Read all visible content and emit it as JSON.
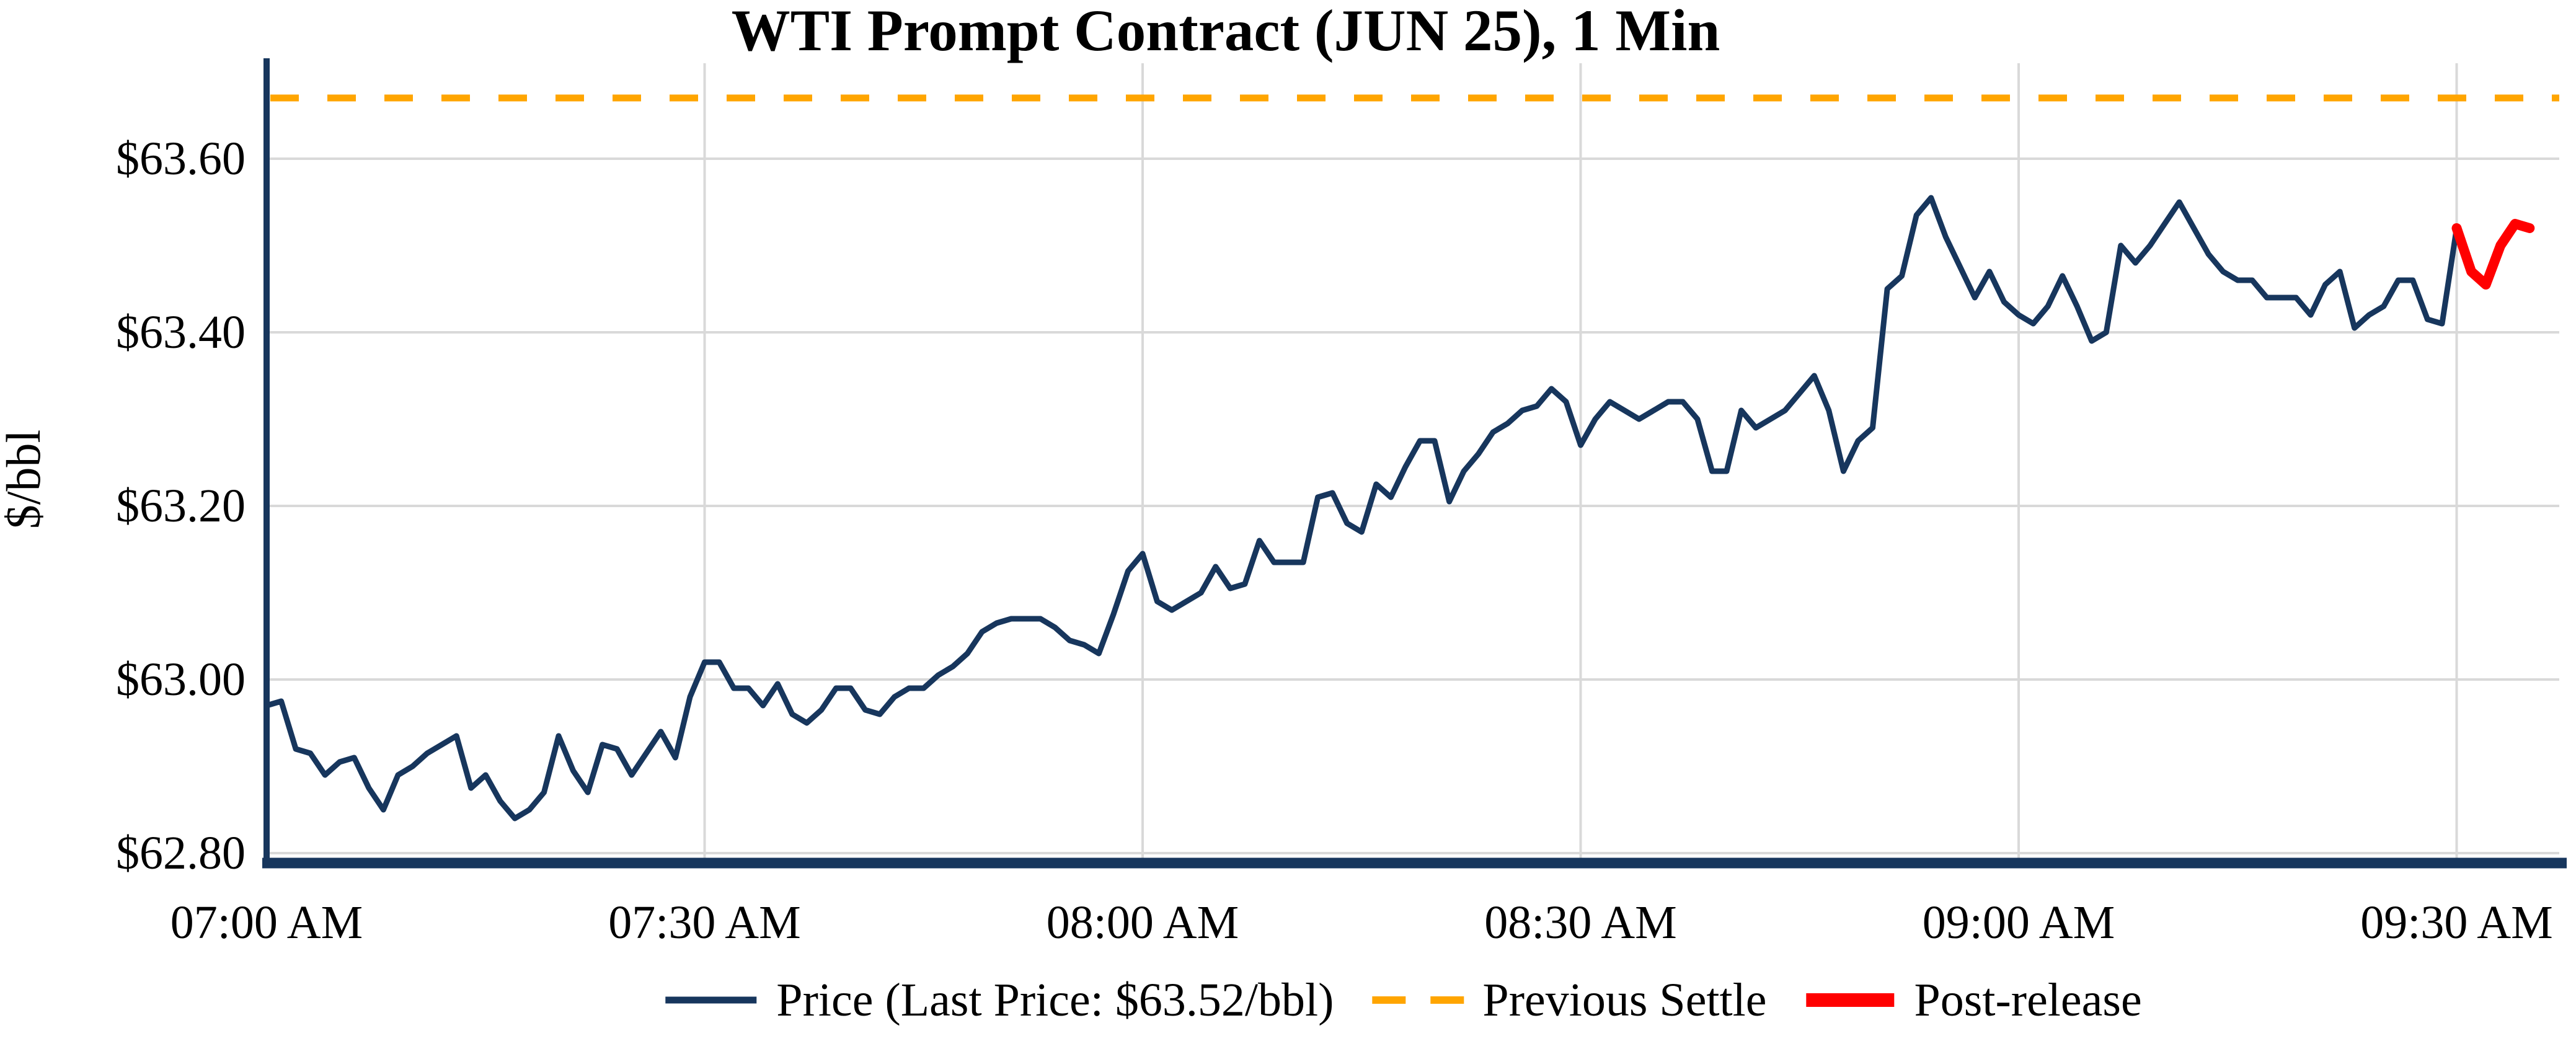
{
  "title": "WTI Prompt Contract (JUN 25), 1 Min",
  "colors": {
    "price_line": "#17365D",
    "previous_settle": "#FFA500",
    "post_release": "#FF0000",
    "gridline": "#D9D9D9",
    "background": "#FFFFFF",
    "text": "#000000"
  },
  "last_price": "$63.52/bbl",
  "chart_data": {
    "type": "line",
    "title": "WTI Prompt Contract (JUN 25), 1 Min",
    "xlabel": "",
    "ylabel": "$/bbl",
    "grid": true,
    "x_axis": {
      "unit": "minutes after 07:00 AM",
      "ticks": [
        {
          "minute": 0,
          "label": "07:00 AM"
        },
        {
          "minute": 30,
          "label": "07:30 AM"
        },
        {
          "minute": 60,
          "label": "08:00 AM"
        },
        {
          "minute": 90,
          "label": "08:30 AM"
        },
        {
          "minute": 120,
          "label": "09:00 AM"
        },
        {
          "minute": 150,
          "label": "09:30 AM"
        }
      ]
    },
    "y_axis": {
      "range": [
        62.79,
        63.71
      ],
      "ticks": [
        {
          "value": 62.8,
          "label": "$62.80"
        },
        {
          "value": 63.0,
          "label": "$63.00"
        },
        {
          "value": 63.2,
          "label": "$63.20"
        },
        {
          "value": 63.4,
          "label": "$63.40"
        },
        {
          "value": 63.6,
          "label": "$63.60"
        }
      ]
    },
    "previous_settle": {
      "label": "Previous Settle",
      "value": 63.67,
      "color": "#FFA500",
      "style": "dashed"
    },
    "series": [
      {
        "name": "Price (Last Price: $63.52/bbl)",
        "color": "#17365D",
        "start_minute": 0,
        "interval_minutes": 1,
        "values": [
          62.97,
          62.975,
          62.92,
          62.915,
          62.89,
          62.905,
          62.91,
          62.875,
          62.85,
          62.89,
          62.9,
          62.915,
          62.925,
          62.935,
          62.875,
          62.89,
          62.86,
          62.84,
          62.85,
          62.87,
          62.935,
          62.895,
          62.87,
          62.925,
          62.92,
          62.89,
          62.915,
          62.94,
          62.91,
          62.98,
          63.02,
          63.02,
          62.99,
          62.99,
          62.97,
          62.995,
          62.96,
          62.95,
          62.965,
          62.99,
          62.99,
          62.965,
          62.96,
          62.98,
          62.99,
          62.99,
          63.005,
          63.015,
          63.03,
          63.055,
          63.065,
          63.07,
          63.07,
          63.07,
          63.06,
          63.045,
          63.04,
          63.03,
          63.075,
          63.125,
          63.145,
          63.09,
          63.08,
          63.09,
          63.1,
          63.13,
          63.105,
          63.11,
          63.16,
          63.135,
          63.135,
          63.135,
          63.21,
          63.215,
          63.18,
          63.17,
          63.225,
          63.21,
          63.245,
          63.275,
          63.275,
          63.205,
          63.24,
          63.26,
          63.285,
          63.295,
          63.31,
          63.315,
          63.335,
          63.32,
          63.27,
          63.3,
          63.32,
          63.31,
          63.3,
          63.31,
          63.32,
          63.32,
          63.3,
          63.24,
          63.24,
          63.31,
          63.29,
          63.3,
          63.31,
          63.33,
          63.35,
          63.31,
          63.24,
          63.275,
          63.29,
          63.45,
          63.465,
          63.535,
          63.555,
          63.51,
          63.475,
          63.44,
          63.47,
          63.435,
          63.42,
          63.41,
          63.43,
          63.465,
          63.43,
          63.39,
          63.4,
          63.5,
          63.48,
          63.5,
          63.525,
          63.55,
          63.52,
          63.49,
          63.47,
          63.46,
          63.46,
          63.44,
          63.44,
          63.44,
          63.42,
          63.455,
          63.47,
          63.405,
          63.42,
          63.43,
          63.46,
          63.46,
          63.415,
          63.41,
          63.52
        ]
      },
      {
        "name": "Post-release",
        "color": "#FF0000",
        "start_minute": 150,
        "interval_minutes": 1,
        "values": [
          63.52,
          63.47,
          63.455,
          63.5,
          63.525,
          63.52
        ]
      }
    ],
    "legend": {
      "position": "bottom-center",
      "items": [
        {
          "label": "Price (Last Price: $63.52/bbl)",
          "swatch": "line",
          "color": "#17365D"
        },
        {
          "label": "Previous Settle",
          "swatch": "dashed-line",
          "color": "#FFA500"
        },
        {
          "label": "Post-release",
          "swatch": "thick-line",
          "color": "#FF0000"
        }
      ]
    }
  }
}
